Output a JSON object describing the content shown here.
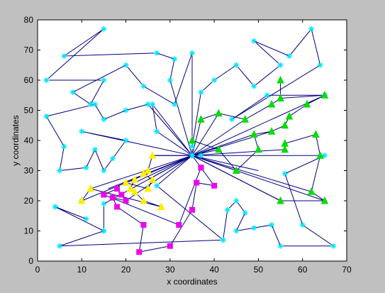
{
  "chart_data": {
    "type": "scatter",
    "title": "",
    "xlabel": "x coordinates",
    "ylabel": "y coordinates",
    "xlim": [
      0,
      70
    ],
    "ylim": [
      0,
      80
    ],
    "xticks": [
      0,
      10,
      20,
      30,
      40,
      50,
      60,
      70
    ],
    "yticks": [
      0,
      10,
      20,
      30,
      40,
      50,
      60,
      70,
      80
    ],
    "grid": false,
    "colors": {
      "figure_background": "#c0c0c0",
      "axes_background": "#ffffff",
      "tour_line": "#000080",
      "cyan_marker": "#00e5ff",
      "green_marker": "#00dd00",
      "magenta_marker": "#ee00ee",
      "yellow_marker": "#ffee00"
    },
    "hub": {
      "marker": "cyan-star",
      "point": [
        35,
        35
      ]
    },
    "cyan_tour": {
      "marker": "cyan-star",
      "line_color": "#000080",
      "points": [
        [
          35,
          35
        ],
        [
          30,
          60
        ],
        [
          31,
          67
        ],
        [
          27,
          69
        ],
        [
          6,
          68
        ],
        [
          15,
          77
        ],
        [
          2,
          60
        ],
        [
          15,
          60
        ],
        [
          12,
          52
        ],
        [
          8,
          56
        ],
        [
          20,
          65
        ],
        [
          24,
          58
        ],
        [
          31,
          52
        ],
        [
          35,
          69
        ],
        [
          35,
          38
        ],
        [
          37,
          56
        ],
        [
          40,
          60
        ],
        [
          45,
          65
        ],
        [
          49,
          58
        ],
        [
          55,
          65
        ],
        [
          49,
          73
        ],
        [
          57,
          68
        ],
        [
          62,
          77
        ],
        [
          64,
          65
        ],
        [
          44,
          47
        ],
        [
          52,
          55
        ],
        [
          65,
          55
        ],
        [
          35,
          35
        ],
        [
          37,
          35
        ],
        [
          65,
          35
        ],
        [
          56,
          29
        ],
        [
          60,
          12
        ],
        [
          67,
          5
        ],
        [
          55,
          5
        ],
        [
          53,
          12
        ],
        [
          49,
          11
        ],
        [
          45,
          10
        ],
        [
          47,
          16
        ],
        [
          45,
          20
        ],
        [
          43,
          17
        ],
        [
          42,
          7
        ],
        [
          27,
          25
        ],
        [
          35,
          35
        ],
        [
          25,
          52
        ],
        [
          20,
          50
        ],
        [
          15,
          47
        ],
        [
          13,
          52
        ],
        [
          2,
          48
        ],
        [
          6,
          38
        ],
        [
          5,
          30
        ],
        [
          11,
          31
        ],
        [
          13,
          37
        ],
        [
          15,
          30
        ],
        [
          17,
          34
        ],
        [
          20,
          40
        ],
        [
          10,
          43
        ],
        [
          35,
          35
        ],
        [
          27,
          43
        ],
        [
          26,
          52
        ],
        [
          35,
          35
        ],
        [
          10,
          20
        ],
        [
          35,
          35
        ],
        [
          15,
          19
        ],
        [
          15,
          10
        ],
        [
          4,
          18
        ],
        [
          11,
          14
        ],
        [
          4,
          18
        ],
        [
          15,
          10
        ],
        [
          5,
          5
        ],
        [
          42,
          7
        ]
      ]
    },
    "hub_spokes": {
      "line_color": "#000080",
      "targets": [
        [
          37,
          47
        ],
        [
          41,
          49
        ],
        [
          47,
          47
        ],
        [
          49,
          42
        ],
        [
          41,
          37
        ],
        [
          45,
          30
        ],
        [
          50,
          30
        ],
        [
          55,
          20
        ],
        [
          65,
          20
        ],
        [
          62,
          23
        ],
        [
          22,
          26
        ],
        [
          16,
          24
        ],
        [
          25,
          29
        ],
        [
          20,
          20
        ],
        [
          12,
          24
        ],
        [
          26,
          35
        ],
        [
          53,
          43
        ],
        [
          56,
          37
        ],
        [
          25,
          27
        ]
      ]
    },
    "green_route": {
      "marker": "green-triangle",
      "line_color": "#000080",
      "points": [
        [
          37,
          47
        ],
        [
          41,
          49
        ],
        [
          47,
          47
        ],
        [
          53,
          52
        ],
        [
          55,
          54
        ],
        [
          55,
          60
        ],
        [
          55,
          54
        ],
        [
          65,
          55
        ],
        [
          61,
          52
        ],
        [
          57,
          48
        ],
        [
          56,
          45
        ],
        [
          53,
          43
        ],
        [
          49,
          42
        ],
        [
          50,
          37
        ],
        [
          45,
          30
        ],
        [
          41,
          37
        ],
        [
          35,
          40
        ],
        [
          35,
          35
        ],
        [
          55,
          20
        ],
        [
          65,
          20
        ],
        [
          62,
          23
        ],
        [
          64,
          35
        ],
        [
          63,
          42
        ],
        [
          56,
          39
        ],
        [
          56,
          37
        ]
      ]
    },
    "magenta_route": {
      "marker": "magenta-square",
      "line_color": "#000080",
      "points": [
        [
          35,
          35
        ],
        [
          37,
          31
        ],
        [
          40,
          25
        ],
        [
          36,
          26
        ],
        [
          35,
          17
        ],
        [
          30,
          5
        ],
        [
          23,
          3
        ],
        [
          24,
          12
        ],
        [
          18,
          18
        ],
        [
          17,
          21
        ],
        [
          20,
          20
        ],
        [
          19,
          22
        ],
        [
          18,
          24
        ],
        [
          15,
          22
        ],
        [
          32,
          12
        ],
        [
          37,
          31
        ]
      ]
    },
    "yellow_route": {
      "marker": "yellow-triangle",
      "line_color": "#000080",
      "points": [
        [
          35,
          35
        ],
        [
          26,
          35
        ],
        [
          25,
          30
        ],
        [
          24,
          29
        ],
        [
          26,
          27
        ],
        [
          25,
          24
        ],
        [
          20,
          26
        ],
        [
          22,
          27
        ],
        [
          21,
          24
        ],
        [
          22,
          23
        ],
        [
          24,
          20
        ],
        [
          28,
          18
        ],
        [
          12,
          24
        ],
        [
          10,
          20
        ]
      ]
    }
  }
}
